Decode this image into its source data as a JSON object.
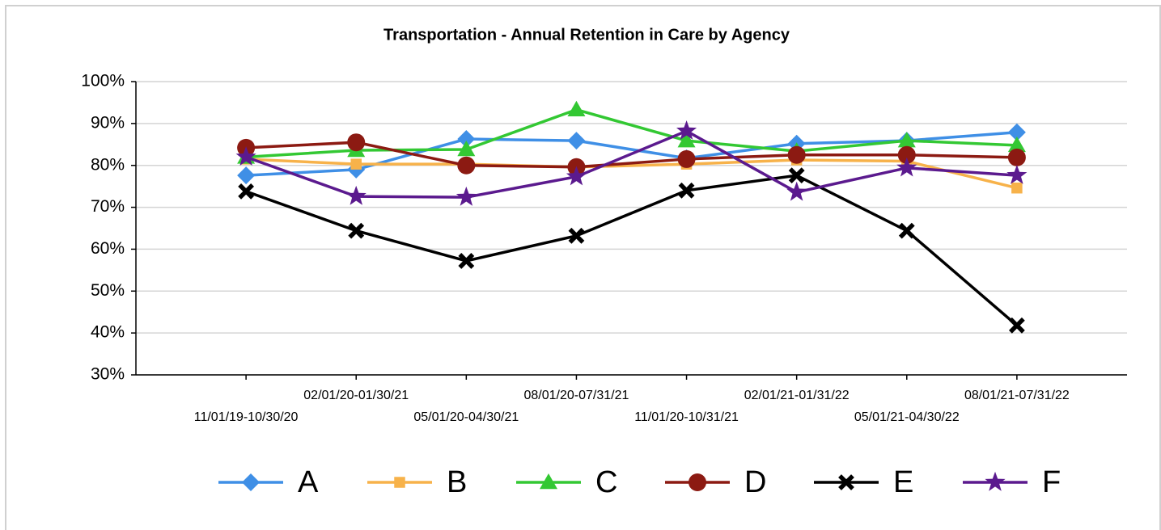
{
  "chart_data": {
    "type": "line",
    "title": "Transportation - Annual Retention in Care by Agency",
    "categories": [
      "11/01/19-10/30/20",
      "02/01/20-01/30/21",
      "05/01/20-04/30/21",
      "08/01/20-07/31/21",
      "11/01/20-10/31/21",
      "02/01/21-01/31/22",
      "05/01/21-04/30/22",
      "08/01/21-07/31/22"
    ],
    "series": [
      {
        "name": "A",
        "color": "#3f8fe6",
        "marker": "diamond",
        "values": [
          77.6,
          79,
          86.3,
          85.9,
          81.7,
          85.2,
          85.9,
          87.9
        ]
      },
      {
        "name": "B",
        "color": "#f7b24a",
        "marker": "square",
        "values": [
          81.5,
          80.3,
          80.3,
          79.6,
          80.3,
          81.3,
          81,
          74.6
        ]
      },
      {
        "name": "C",
        "color": "#33c833",
        "marker": "triangle",
        "values": [
          82,
          83.6,
          83.8,
          93.3,
          85.9,
          83.4,
          85.9,
          84.8
        ]
      },
      {
        "name": "D",
        "color": "#8c1a12",
        "marker": "circle",
        "values": [
          84.2,
          85.5,
          80,
          79.6,
          81.5,
          82.5,
          82.5,
          81.9
        ]
      },
      {
        "name": "E",
        "color": "#000000",
        "marker": "cross",
        "values": [
          73.8,
          64.4,
          57.2,
          63.2,
          74,
          77.6,
          64.4,
          41.8
        ]
      },
      {
        "name": "F",
        "color": "#5b1a8e",
        "marker": "star",
        "values": [
          82,
          72.6,
          72.4,
          77.3,
          88.2,
          73.6,
          79.4,
          77.6
        ]
      }
    ],
    "ylim": [
      30,
      100
    ],
    "yticks": [
      {
        "value": 30,
        "label": "30%"
      },
      {
        "value": 40,
        "label": "40%"
      },
      {
        "value": 50,
        "label": "50%"
      },
      {
        "value": 60,
        "label": "60%"
      },
      {
        "value": 70,
        "label": "70%"
      },
      {
        "value": 80,
        "label": "80%"
      },
      {
        "value": 90,
        "label": "90%"
      },
      {
        "value": 100,
        "label": "100%"
      }
    ],
    "grid": true,
    "legend": "bottom"
  }
}
